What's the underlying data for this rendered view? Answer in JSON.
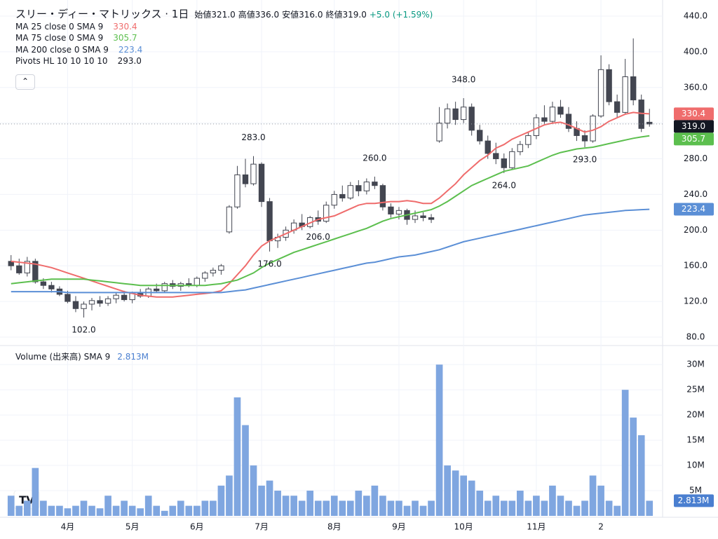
{
  "header": {
    "title": "スリー・ディー・マトリックス · 1日",
    "ohlc": [
      {
        "label": "始値",
        "value": "321.0"
      },
      {
        "label": "高値",
        "value": "336.0"
      },
      {
        "label": "安値",
        "value": "316.0"
      },
      {
        "label": "終値",
        "value": "319.0"
      }
    ],
    "change": "+5.0 (+1.59%)"
  },
  "pivot_legend": {
    "name": "Pivots HL 10 10 10 10",
    "value": "293.0"
  },
  "volume_legend": {
    "name": "Volume (出来高)",
    "params": "SMA 9",
    "value": "2.813M"
  },
  "chart_data": [
    {
      "type": "candlestick",
      "ylim": [
        71.35,
        450.2
      ],
      "yticks": [
        {
          "value": 80,
          "label": "80.0"
        },
        {
          "value": 120,
          "label": "120.0"
        },
        {
          "value": 160,
          "label": "160.0"
        },
        {
          "value": 200,
          "label": "200.0"
        },
        {
          "value": 240,
          "label": "240.0"
        },
        {
          "value": 280,
          "label": "280.0"
        },
        {
          "value": 320,
          "label": "320.0"
        },
        {
          "value": 360,
          "label": "360.0"
        },
        {
          "value": 400,
          "label": "400.0"
        },
        {
          "value": 440,
          "label": "440.0"
        }
      ],
      "grid": true,
      "up_color": "#ffffff",
      "down_color": "#434651",
      "last_color": "#131722",
      "candles": [
        [
          165,
          172,
          155,
          160
        ],
        [
          160,
          168,
          150,
          152
        ],
        [
          152,
          170,
          148,
          165
        ],
        [
          165,
          168,
          140,
          142
        ],
        [
          142,
          146,
          134,
          138
        ],
        [
          138,
          142,
          130,
          134
        ],
        [
          134,
          137,
          126,
          128
        ],
        [
          128,
          132,
          118,
          120
        ],
        [
          120,
          126,
          108,
          112
        ],
        [
          112,
          120,
          102,
          117
        ],
        [
          117,
          124,
          110,
          121
        ],
        [
          121,
          126,
          114,
          118
        ],
        [
          118,
          126,
          115,
          123
        ],
        [
          123,
          130,
          118,
          127
        ],
        [
          127,
          132,
          120,
          122
        ],
        [
          122,
          131,
          118,
          129
        ],
        [
          129,
          134,
          124,
          126
        ],
        [
          126,
          136,
          124,
          134
        ],
        [
          134,
          140,
          130,
          132
        ],
        [
          132,
          142,
          130,
          140
        ],
        [
          140,
          144,
          134,
          137
        ],
        [
          137,
          142,
          132,
          140
        ],
        [
          140,
          146,
          136,
          138
        ],
        [
          138,
          148,
          136,
          146
        ],
        [
          146,
          154,
          142,
          152
        ],
        [
          152,
          158,
          148,
          155
        ],
        [
          155,
          162,
          150,
          160
        ],
        [
          198,
          228,
          196,
          226
        ],
        [
          226,
          272,
          224,
          262
        ],
        [
          262,
          280,
          248,
          252
        ],
        [
          252,
          283,
          250,
          274
        ],
        [
          274,
          276,
          226,
          232
        ],
        [
          232,
          236,
          176,
          188
        ],
        [
          188,
          196,
          180,
          192
        ],
        [
          192,
          204,
          188,
          200
        ],
        [
          200,
          212,
          196,
          208
        ],
        [
          208,
          218,
          200,
          204
        ],
        [
          204,
          216,
          202,
          214
        ],
        [
          214,
          222,
          206,
          210
        ],
        [
          210,
          232,
          208,
          228
        ],
        [
          228,
          244,
          224,
          240
        ],
        [
          240,
          250,
          232,
          236
        ],
        [
          236,
          254,
          234,
          250
        ],
        [
          250,
          256,
          238,
          244
        ],
        [
          244,
          258,
          240,
          254
        ],
        [
          254,
          260,
          246,
          250
        ],
        [
          250,
          252,
          222,
          226
        ],
        [
          226,
          230,
          214,
          218
        ],
        [
          218,
          226,
          212,
          222
        ],
        [
          222,
          224,
          206,
          212
        ],
        [
          212,
          222,
          208,
          216
        ],
        [
          216,
          220,
          210,
          214
        ],
        [
          214,
          218,
          208,
          212
        ],
        [
          300,
          338,
          298,
          320
        ],
        [
          320,
          342,
          314,
          336
        ],
        [
          336,
          344,
          318,
          324
        ],
        [
          324,
          348,
          320,
          338
        ],
        [
          338,
          342,
          306,
          312
        ],
        [
          312,
          318,
          296,
          300
        ],
        [
          300,
          306,
          280,
          286
        ],
        [
          286,
          298,
          274,
          280
        ],
        [
          280,
          286,
          264,
          270
        ],
        [
          270,
          292,
          268,
          288
        ],
        [
          288,
          300,
          284,
          296
        ],
        [
          296,
          310,
          292,
          306
        ],
        [
          306,
          330,
          302,
          326
        ],
        [
          326,
          340,
          318,
          322
        ],
        [
          322,
          344,
          320,
          338
        ],
        [
          338,
          346,
          326,
          330
        ],
        [
          330,
          338,
          310,
          314
        ],
        [
          314,
          322,
          300,
          306
        ],
        [
          306,
          312,
          293,
          300
        ],
        [
          300,
          330,
          298,
          328
        ],
        [
          328,
          396,
          326,
          380
        ],
        [
          380,
          386,
          340,
          344
        ],
        [
          344,
          352,
          326,
          332
        ],
        [
          332,
          392,
          330,
          372
        ],
        [
          372,
          415,
          340,
          346
        ],
        [
          346,
          352,
          310,
          314
        ],
        [
          321,
          336,
          316,
          319
        ]
      ],
      "series": [
        {
          "name": "MA 25 close 0 SMA 9",
          "label": "330.4",
          "color": "#ef6c6c",
          "values": [
            165,
            164,
            163,
            162,
            160,
            158,
            155,
            152,
            149,
            146,
            143,
            140,
            137,
            134,
            131,
            129,
            127,
            126,
            125,
            125,
            125,
            126,
            127,
            128,
            129,
            130,
            132,
            140,
            150,
            160,
            172,
            182,
            188,
            192,
            196,
            200,
            204,
            208,
            212,
            214,
            216,
            220,
            224,
            228,
            230,
            230,
            231,
            232,
            232,
            233,
            232,
            230,
            230,
            236,
            244,
            252,
            262,
            270,
            278,
            284,
            292,
            296,
            302,
            306,
            310,
            314,
            318,
            320,
            321,
            318,
            314,
            310,
            312,
            316,
            322,
            326,
            330,
            332,
            331,
            330.4
          ]
        },
        {
          "name": "MA 75 close 0 SMA 9",
          "label": "305.7",
          "color": "#5cbf4e",
          "values": [
            140,
            141,
            142,
            143,
            144,
            145,
            145,
            145,
            145,
            145,
            144,
            143,
            142,
            141,
            140,
            139,
            138,
            138,
            138,
            138,
            138,
            138,
            138,
            138,
            138,
            139,
            140,
            142,
            144,
            148,
            152,
            158,
            163,
            167,
            171,
            175,
            178,
            181,
            184,
            187,
            190,
            193,
            196,
            199,
            202,
            206,
            210,
            213,
            215,
            217,
            219,
            221,
            223,
            227,
            232,
            238,
            244,
            250,
            254,
            258,
            262,
            266,
            268,
            270,
            272,
            276,
            280,
            284,
            287,
            289,
            291,
            292,
            293,
            295,
            297,
            299,
            301,
            303,
            304.5,
            305.7
          ]
        },
        {
          "name": "MA 200 close 0 SMA 9",
          "label": "223.4",
          "color": "#5b8fd6",
          "values": [
            131,
            131,
            131,
            131,
            131,
            131,
            131,
            130,
            130,
            130,
            130,
            130,
            130,
            130,
            130,
            130,
            130,
            130,
            130,
            130,
            130,
            130,
            130,
            130,
            130,
            130,
            130,
            131,
            132,
            133,
            135,
            137,
            139,
            141,
            143,
            145,
            147,
            149,
            151,
            153,
            155,
            157,
            159,
            161,
            163,
            164,
            166,
            168,
            170,
            171,
            172,
            174,
            176,
            178,
            181,
            184,
            187,
            189,
            191,
            193,
            195,
            197,
            199,
            201,
            203,
            205,
            207,
            209,
            211,
            213,
            215,
            217,
            218,
            219,
            220,
            221,
            222,
            222.5,
            223,
            223.4
          ]
        }
      ],
      "pivots": [
        {
          "value": 102,
          "label": "102.0"
        },
        {
          "value": 283,
          "label": "283.0"
        },
        {
          "value": 176,
          "label": "176.0"
        },
        {
          "value": 260,
          "label": "260.0"
        },
        {
          "value": 206,
          "label": "206.0"
        },
        {
          "value": 348,
          "label": "348.0"
        },
        {
          "value": 264,
          "label": "264.0"
        },
        {
          "value": 293,
          "label": "293.0"
        }
      ]
    },
    {
      "type": "bar",
      "ylim": [
        0,
        33.5
      ],
      "color": "#7fa6e0",
      "label_color": "#4a7fd0",
      "yticks": [
        {
          "value": 5,
          "label": "5M"
        },
        {
          "value": 10,
          "label": "10M"
        },
        {
          "value": 15,
          "label": "15M"
        },
        {
          "value": 20,
          "label": "20M"
        },
        {
          "value": 25,
          "label": "25M"
        },
        {
          "value": 30,
          "label": "30M"
        }
      ],
      "categories": [
        null,
        null,
        null,
        null,
        null,
        null,
        null,
        "4月",
        null,
        null,
        null,
        null,
        null,
        null,
        null,
        "5月",
        null,
        null,
        null,
        null,
        null,
        null,
        null,
        "6月",
        null,
        null,
        null,
        null,
        null,
        null,
        null,
        "7月",
        null,
        null,
        null,
        null,
        null,
        null,
        null,
        null,
        "8月",
        null,
        null,
        null,
        null,
        null,
        null,
        null,
        "9月",
        null,
        null,
        null,
        null,
        null,
        null,
        null,
        "10月",
        null,
        null,
        null,
        null,
        null,
        null,
        null,
        null,
        "11月",
        null,
        null,
        null,
        null,
        null,
        null,
        null,
        "2",
        null,
        null,
        null,
        null,
        null,
        null
      ],
      "values": [
        4,
        2,
        3,
        9.5,
        3,
        2,
        2,
        1.5,
        2,
        3,
        2,
        1.5,
        4,
        2,
        3,
        2,
        1.5,
        4,
        2,
        1,
        2,
        3,
        2,
        2,
        3,
        3,
        6,
        8,
        23.5,
        18,
        10,
        6,
        7,
        5,
        4,
        4,
        3,
        5,
        3,
        3,
        4,
        3,
        3,
        5,
        4,
        6,
        4,
        3,
        3,
        2,
        3,
        2,
        3,
        30,
        10,
        9,
        8,
        7,
        5,
        3,
        4,
        3,
        3,
        5,
        3,
        4,
        3,
        6,
        4,
        3,
        2,
        3,
        8,
        6,
        3,
        2,
        25,
        19.5,
        16,
        3
      ]
    }
  ]
}
